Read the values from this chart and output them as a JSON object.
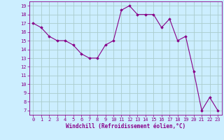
{
  "x": [
    0,
    1,
    2,
    3,
    4,
    5,
    6,
    7,
    8,
    9,
    10,
    11,
    12,
    13,
    14,
    15,
    16,
    17,
    18,
    19,
    20,
    21,
    22,
    23
  ],
  "y": [
    17,
    16.5,
    15.5,
    15,
    15,
    14.5,
    13.5,
    13,
    13,
    14.5,
    15,
    18.5,
    19,
    18,
    18,
    18,
    16.5,
    17.5,
    15,
    15.5,
    11.5,
    7,
    8.5,
    7
  ],
  "line_color": "#880088",
  "marker": "D",
  "marker_size": 1.8,
  "bg_color": "#cceeff",
  "grid_color": "#aacccc",
  "axis_color": "#880088",
  "xlabel": "Windchill (Refroidissement éolien,°C)",
  "ylim": [
    6.5,
    19.5
  ],
  "xlim": [
    -0.5,
    23.5
  ],
  "yticks": [
    7,
    8,
    9,
    10,
    11,
    12,
    13,
    14,
    15,
    16,
    17,
    18,
    19
  ],
  "xticks": [
    0,
    1,
    2,
    3,
    4,
    5,
    6,
    7,
    8,
    9,
    10,
    11,
    12,
    13,
    14,
    15,
    16,
    17,
    18,
    19,
    20,
    21,
    22,
    23
  ],
  "tick_fontsize": 5,
  "xlabel_fontsize": 5.5
}
